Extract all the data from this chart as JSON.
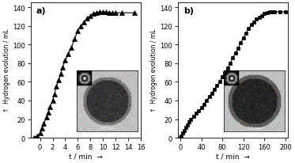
{
  "panel_a": {
    "label": "a)",
    "x": [
      -1.0,
      -0.5,
      0.0,
      0.3,
      0.6,
      1.0,
      1.3,
      1.6,
      2.0,
      2.3,
      2.6,
      3.0,
      3.3,
      3.6,
      4.0,
      4.5,
      5.0,
      5.5,
      6.0,
      6.5,
      7.0,
      7.5,
      8.0,
      8.5,
      9.0,
      9.5,
      10.0,
      10.5,
      11.0,
      11.5,
      12.0,
      13.0,
      15.0
    ],
    "y": [
      0,
      2,
      5,
      10,
      15,
      22,
      27,
      33,
      40,
      47,
      55,
      62,
      69,
      76,
      83,
      90,
      97,
      106,
      115,
      120,
      124,
      128,
      131,
      133,
      134,
      135,
      135,
      135,
      134,
      134,
      134,
      134,
      134
    ],
    "marker": "^",
    "markersize": 4,
    "color": "black",
    "xlabel": "t / min",
    "ylabel": "Hydrogen evolution / mL",
    "xlim": [
      -1.5,
      16
    ],
    "ylim": [
      0,
      145
    ],
    "xticks": [
      0,
      2,
      4,
      6,
      8,
      10,
      12,
      14,
      16
    ],
    "yticks": [
      0,
      20,
      40,
      60,
      80,
      100,
      120,
      140
    ]
  },
  "panel_b": {
    "label": "b)",
    "x": [
      0,
      2,
      5,
      8,
      11,
      14,
      17,
      20,
      25,
      30,
      35,
      40,
      45,
      50,
      55,
      60,
      65,
      70,
      75,
      80,
      85,
      90,
      95,
      100,
      105,
      110,
      115,
      120,
      125,
      130,
      135,
      140,
      145,
      150,
      155,
      160,
      165,
      170,
      175,
      180,
      190,
      200
    ],
    "y": [
      0,
      2,
      5,
      8,
      11,
      14,
      17,
      20,
      23,
      26,
      29,
      32,
      36,
      40,
      44,
      48,
      52,
      56,
      60,
      65,
      70,
      75,
      80,
      86,
      91,
      96,
      102,
      107,
      112,
      117,
      121,
      124,
      127,
      129,
      131,
      133,
      134,
      135,
      135,
      135,
      135,
      135
    ],
    "marker": "s",
    "markersize": 3.5,
    "color": "black",
    "xlabel": "t / min",
    "ylabel": "Hydrogen evolution / mL",
    "xlim": [
      -5,
      205
    ],
    "ylim": [
      0,
      145
    ],
    "xticks": [
      0,
      40,
      80,
      120,
      160,
      200
    ],
    "yticks": [
      0,
      20,
      40,
      60,
      80,
      100,
      120,
      140
    ]
  },
  "arrow_x_label": "t / min",
  "arrow_label": "→",
  "ylabel_arrow": "↑",
  "background_color": "#f0f0f0",
  "figure_bg": "#e8e8e8"
}
